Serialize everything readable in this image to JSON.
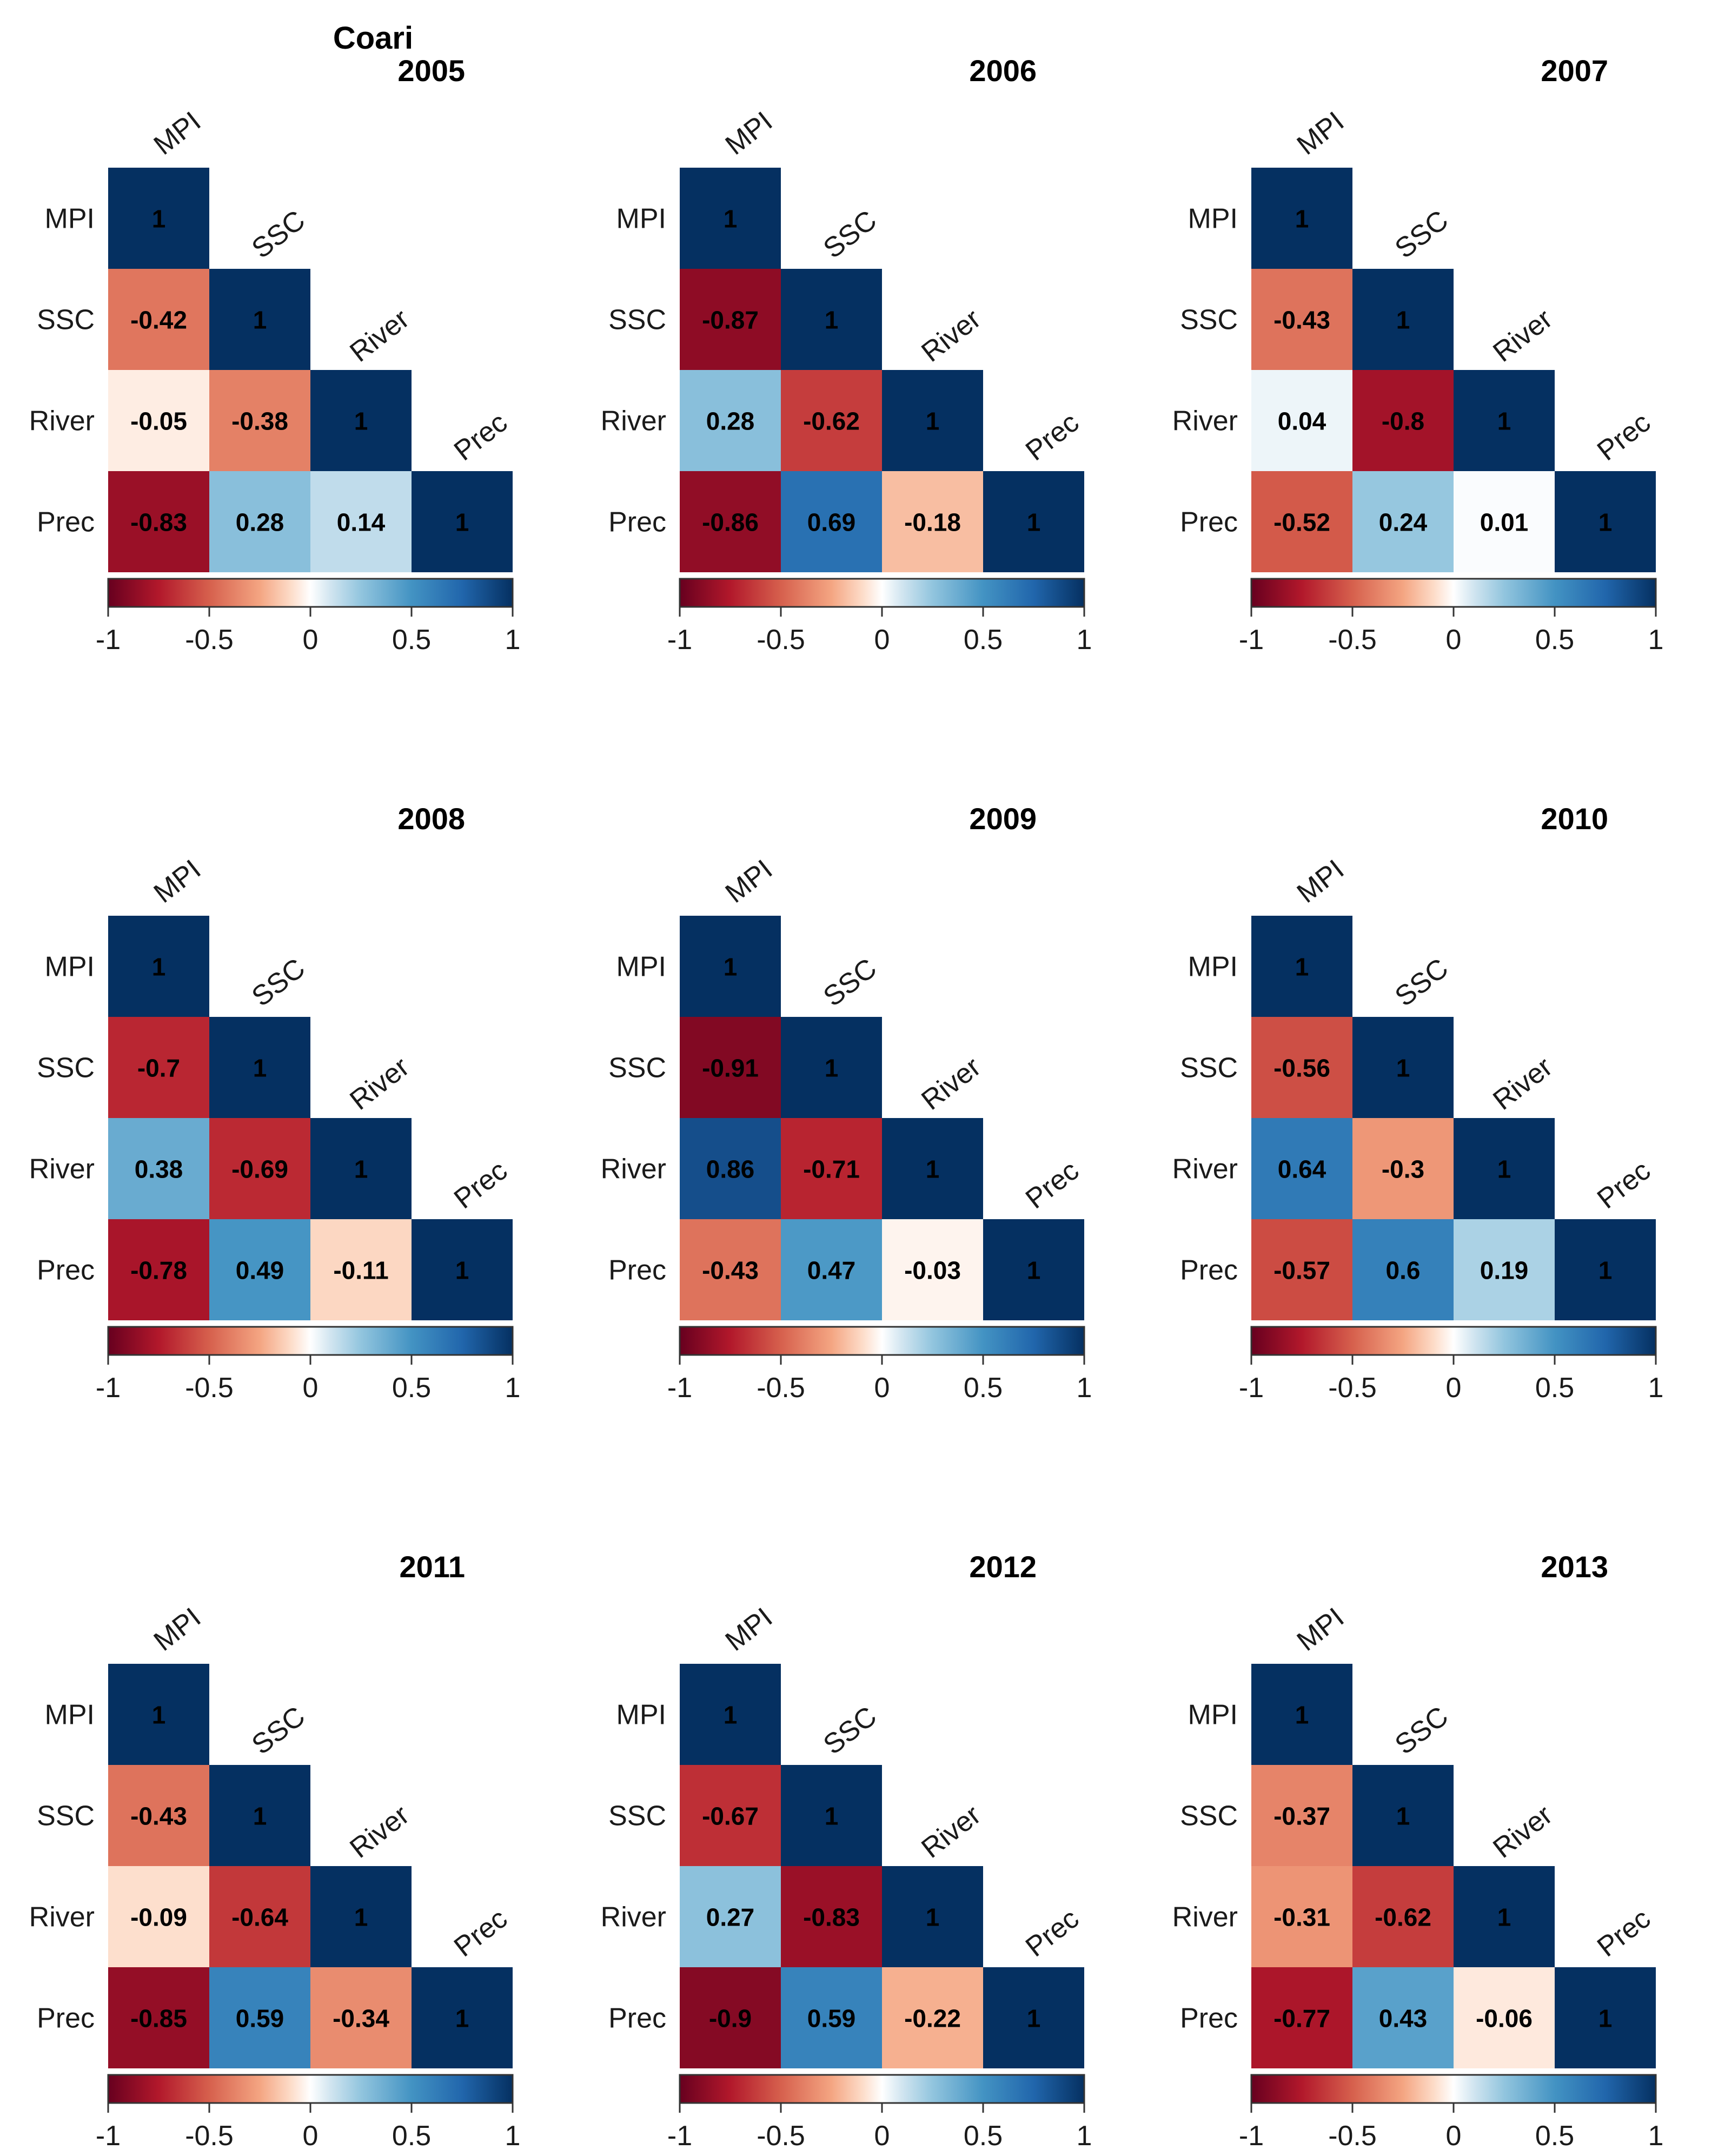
{
  "chart_data": {
    "type": "heatmap",
    "title": "Coari",
    "variables": [
      "MPI",
      "SSC",
      "River",
      "Prec"
    ],
    "color_scale": {
      "min": -1,
      "max": 1,
      "ticks": [
        "-1",
        "-0.5",
        "0",
        "0.5",
        "1"
      ],
      "negative_color": "#67001f",
      "mid_color": "#f7f7f7",
      "positive_color": "#053061"
    },
    "panels": [
      {
        "year": "2005",
        "values": {
          "SSC": [
            "-0.42"
          ],
          "River": [
            "-0.05",
            "-0.38"
          ],
          "Prec": [
            "-0.83",
            "0.28",
            "0.14"
          ]
        }
      },
      {
        "year": "2006",
        "values": {
          "SSC": [
            "-0.87"
          ],
          "River": [
            "0.28",
            "-0.62"
          ],
          "Prec": [
            "-0.86",
            "0.69",
            "-0.18"
          ]
        }
      },
      {
        "year": "2007",
        "values": {
          "SSC": [
            "-0.43"
          ],
          "River": [
            "0.04",
            "-0.8"
          ],
          "Prec": [
            "-0.52",
            "0.24",
            "0.01"
          ]
        }
      },
      {
        "year": "2008",
        "values": {
          "SSC": [
            "-0.7"
          ],
          "River": [
            "0.38",
            "-0.69"
          ],
          "Prec": [
            "-0.78",
            "0.49",
            "-0.11"
          ]
        }
      },
      {
        "year": "2009",
        "values": {
          "SSC": [
            "-0.91"
          ],
          "River": [
            "0.86",
            "-0.71"
          ],
          "Prec": [
            "-0.43",
            "0.47",
            "-0.03"
          ]
        }
      },
      {
        "year": "2010",
        "values": {
          "SSC": [
            "-0.56"
          ],
          "River": [
            "0.64",
            "-0.3"
          ],
          "Prec": [
            "-0.57",
            "0.6",
            "0.19"
          ]
        }
      },
      {
        "year": "2011",
        "values": {
          "SSC": [
            "-0.43"
          ],
          "River": [
            "-0.09",
            "-0.64"
          ],
          "Prec": [
            "-0.85",
            "0.59",
            "-0.34"
          ]
        }
      },
      {
        "year": "2012",
        "values": {
          "SSC": [
            "-0.67"
          ],
          "River": [
            "0.27",
            "-0.83"
          ],
          "Prec": [
            "-0.9",
            "0.59",
            "-0.22"
          ]
        }
      },
      {
        "year": "2013",
        "values": {
          "SSC": [
            "-0.37"
          ],
          "River": [
            "-0.31",
            "-0.62"
          ],
          "Prec": [
            "-0.77",
            "0.43",
            "-0.06"
          ]
        }
      }
    ]
  }
}
